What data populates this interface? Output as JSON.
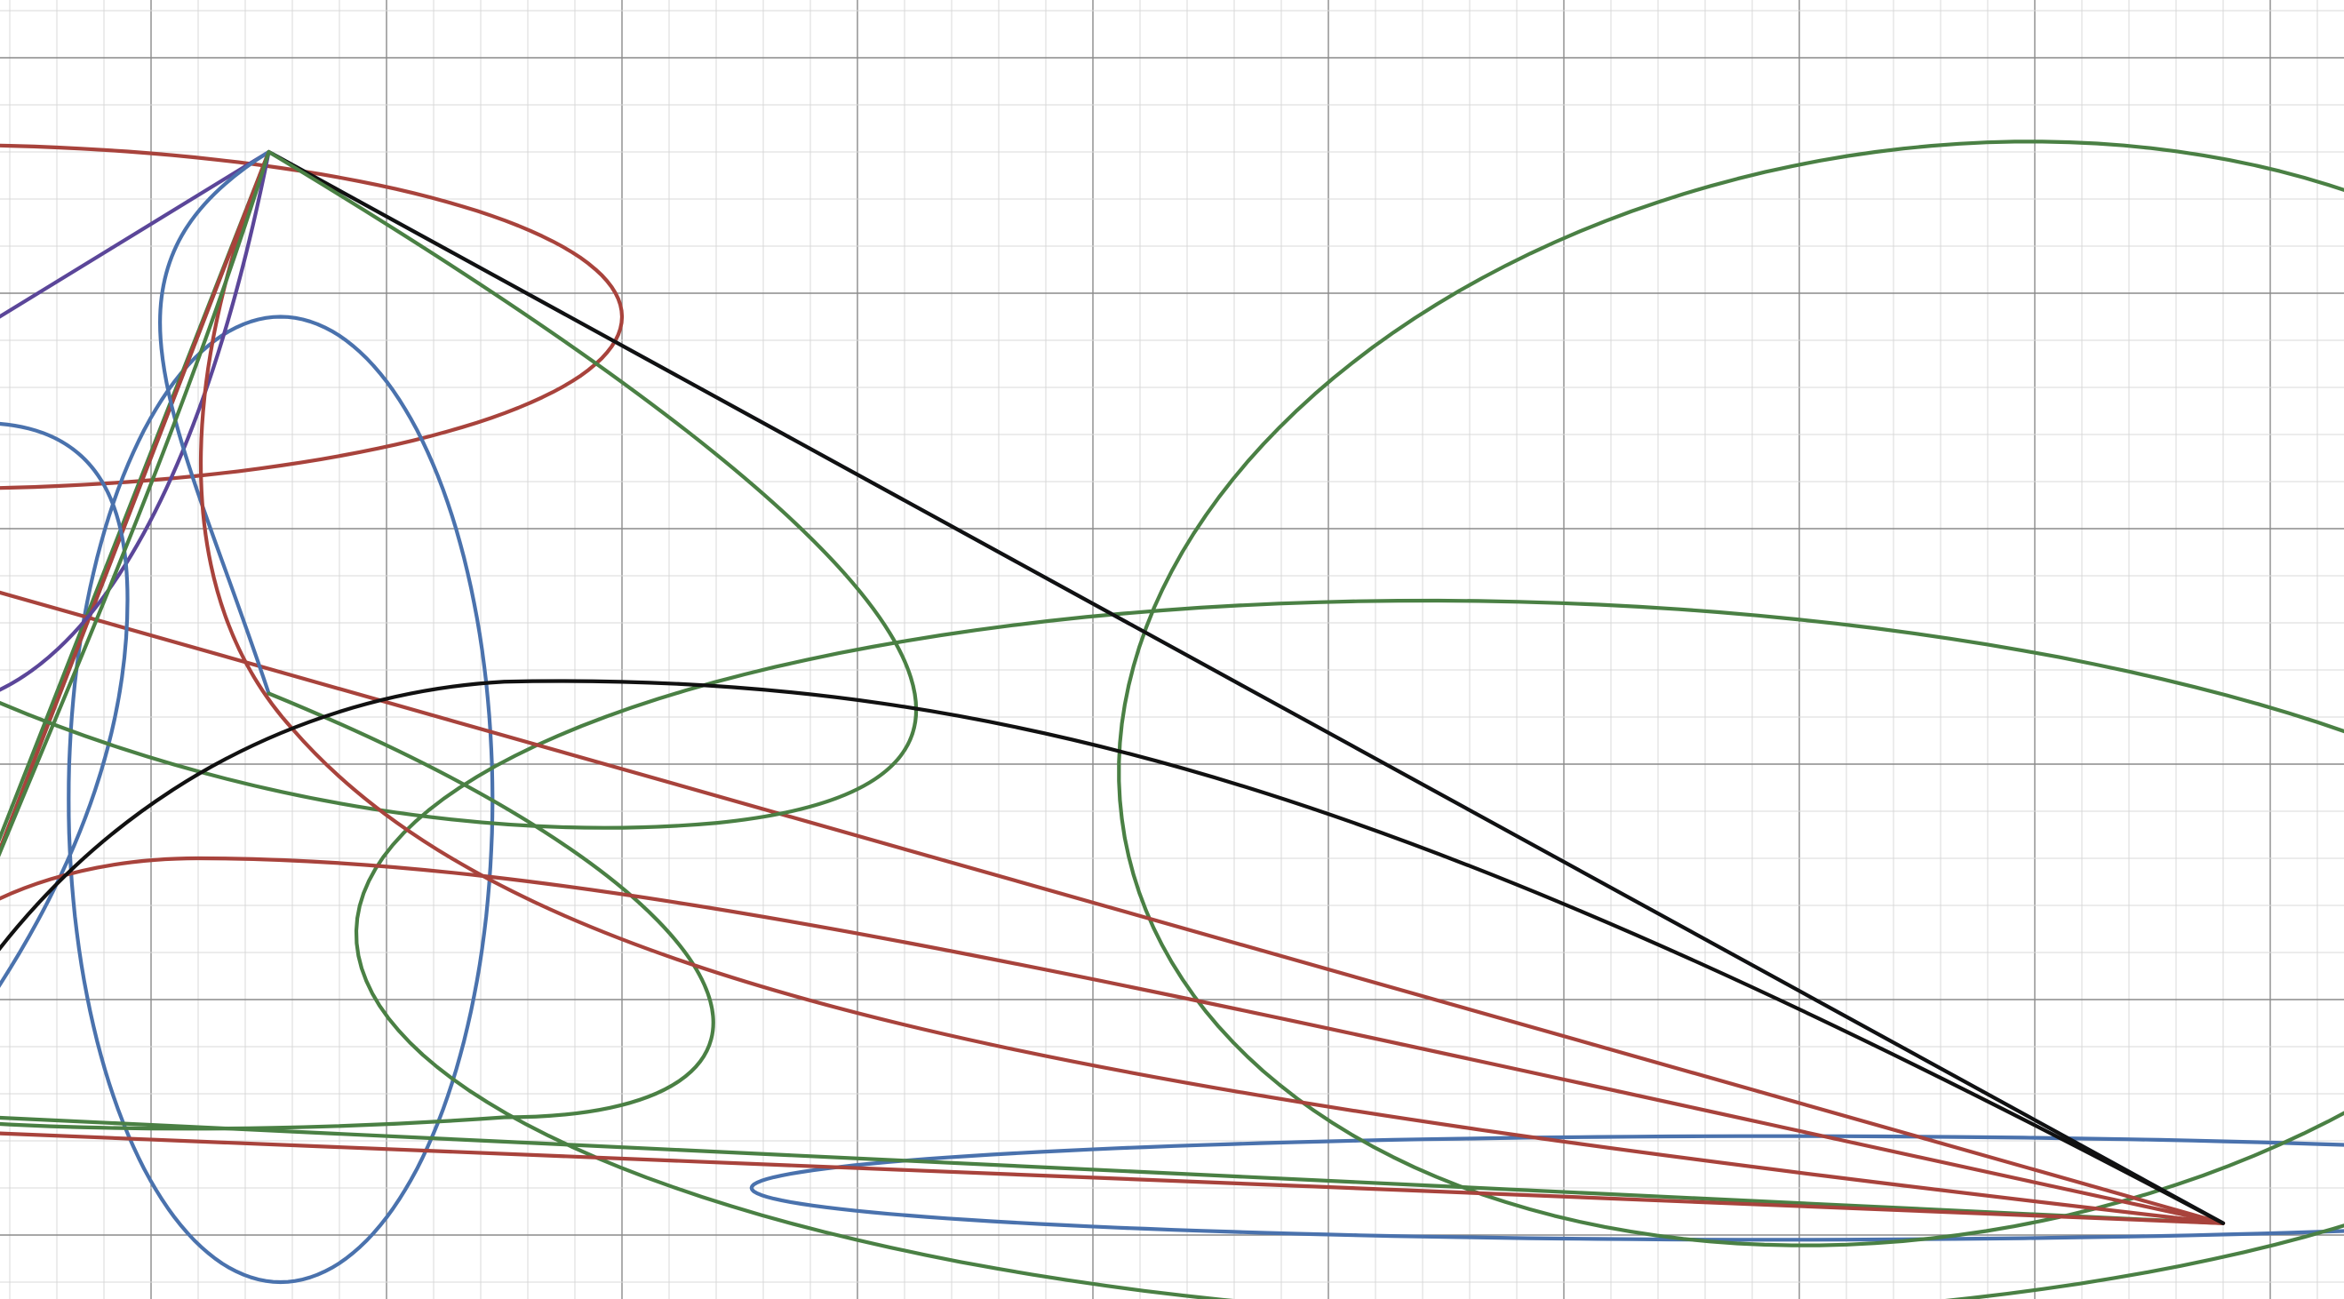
{
  "colors": {
    "red": "#a8433c",
    "blue": "#4a72ad",
    "green": "#4a8044",
    "purple": "#5b4699",
    "black": "#111111",
    "grid_minor": "#d8d8d8",
    "grid_major": "#8a8a8a"
  },
  "graph": {
    "grid": true,
    "axes_labels": false
  },
  "ellipses": [
    {
      "id": "red-top-ellipse",
      "color": "red",
      "cx": -2.9,
      "cy": 3.9,
      "rx": 2.9,
      "ry": 0.73
    },
    {
      "id": "blue-tall-ellipse",
      "color": "blue",
      "cx": -1.45,
      "cy": 1.85,
      "rx": 0.9,
      "ry": 2.05
    },
    {
      "id": "purple-left-ellipse",
      "color": "purple",
      "cx": -3.5,
      "cy": 1.8,
      "rx": 0.55,
      "ry": 1.31
    },
    {
      "id": "blue-flat-ellipse",
      "color": "blue",
      "cx": 4.9,
      "cy": 0.2,
      "rx": 4.35,
      "ry": 0.22
    },
    {
      "id": "green-big-ellipse",
      "color": "green",
      "cx": 3.77,
      "cy": 1.17,
      "rx": 4.9,
      "ry": 1.52,
      "angle": -0.025
    },
    {
      "id": "green-large-ellipse",
      "color": "green",
      "cx": 5.5,
      "cy": 2.3,
      "rx": 3.42,
      "ry": 2.3,
      "angle": 0.18
    }
  ],
  "segments": [
    {
      "id": "green-pq-line",
      "color": "green",
      "from": "P",
      "to": "Q"
    },
    {
      "id": "green-pt-line",
      "color": "green",
      "from": "P",
      "to": "T"
    },
    {
      "id": "green-ts-line",
      "color": "green",
      "from": "T",
      "to": "S"
    },
    {
      "id": "purple-rp-line",
      "color": "purple",
      "from": "R",
      "to": "P"
    },
    {
      "id": "blue-rq-line",
      "color": "blue",
      "from": "R",
      "to": "Q"
    },
    {
      "id": "red-rs-line",
      "color": "red",
      "from": "R",
      "to": "S"
    },
    {
      "id": "red-qp-line",
      "color": "red",
      "from": "Q",
      "to": "P"
    },
    {
      "id": "blue-ps-line",
      "color": "blue",
      "from": "P",
      "to": "S"
    },
    {
      "id": "black-ps-line",
      "color": "black",
      "from": "P",
      "to": "S"
    },
    {
      "id": "red-qs-line",
      "color": "red",
      "from": "Q",
      "to": "S"
    }
  ],
  "points": {
    "P": [
      -1.5,
      4.6
    ],
    "Q": [
      -3.1,
      0.45
    ],
    "R": [
      -3.95,
      3.1
    ],
    "S": [
      6.8,
      0.05
    ],
    "T": [
      -3.1,
      0.52
    ],
    "M": [
      -1.5,
      2.3
    ]
  },
  "beziers": [
    {
      "id": "purple-loop-curve",
      "color": "purple",
      "pts": [
        [
          -3.95,
          3.1
        ],
        [
          -3.4,
          1.9
        ],
        [
          -2.1,
          1.6
        ],
        [
          -1.5,
          4.6
        ]
      ]
    },
    {
      "id": "blue-hook-curve",
      "color": "blue",
      "pts": [
        [
          -3.95,
          3.1
        ],
        [
          -2.6,
          3.7
        ],
        [
          -2.1,
          3.5
        ],
        [
          -2.1,
          2.7
        ],
        [
          -2.1,
          1.6
        ],
        [
          -2.9,
          0.7
        ],
        [
          -3.1,
          0.45
        ]
      ]
    },
    {
      "id": "blue-curl-curve",
      "color": "blue",
      "pts": [
        [
          -1.5,
          4.6
        ],
        [
          -2.3,
          4.1
        ],
        [
          -1.9,
          3.5
        ],
        [
          -1.5,
          2.3
        ]
      ]
    },
    {
      "id": "green-loop-curve",
      "color": "green",
      "pts": [
        [
          -1.5,
          4.6
        ],
        [
          1.5,
          2.8
        ],
        [
          1.9,
          1.9
        ],
        [
          0.4,
          1.75
        ],
        [
          -1.3,
          1.6
        ],
        [
          -3.2,
          2.3
        ],
        [
          -3.95,
          3.1
        ]
      ]
    },
    {
      "id": "green-swoop-curve",
      "color": "green",
      "pts": [
        [
          -1.5,
          2.3
        ],
        [
          0.7,
          1.4
        ],
        [
          0.9,
          0.5
        ],
        [
          -0.5,
          0.5
        ],
        [
          -1.9,
          0.4
        ],
        [
          -3.0,
          0.48
        ],
        [
          -3.1,
          0.52
        ]
      ]
    },
    {
      "id": "red-long-curve",
      "color": "red",
      "pts": [
        [
          -3.1,
          0.45
        ],
        [
          -3.4,
          1.1
        ],
        [
          -2.7,
          1.6
        ],
        [
          -1.8,
          1.6
        ],
        [
          0.0,
          1.6
        ],
        [
          2.4,
          1.0
        ],
        [
          6.8,
          0.05
        ]
      ]
    },
    {
      "id": "red-s-curve",
      "color": "red",
      "pts": [
        [
          -1.5,
          4.6
        ],
        [
          -1.9,
          3.6
        ],
        [
          -1.9,
          2.7
        ],
        [
          -1.4,
          2.15
        ],
        [
          -0.4,
          1.0
        ],
        [
          2.0,
          0.6
        ],
        [
          6.8,
          0.05
        ]
      ]
    },
    {
      "id": "black-arc-curve",
      "color": "black",
      "pts": [
        [
          -3.1,
          0.45
        ],
        [
          -2.5,
          1.8
        ],
        [
          -1.4,
          2.3
        ],
        [
          -0.5,
          2.35
        ],
        [
          1.7,
          2.4
        ],
        [
          3.5,
          1.8
        ],
        [
          6.8,
          0.05
        ]
      ]
    },
    {
      "id": "green-qp-curve",
      "color": "green",
      "pts": [
        [
          -3.1,
          0.45
        ],
        [
          -2.7,
          1.6
        ],
        [
          -2.0,
          3.0
        ],
        [
          -1.5,
          4.6
        ]
      ]
    }
  ]
}
